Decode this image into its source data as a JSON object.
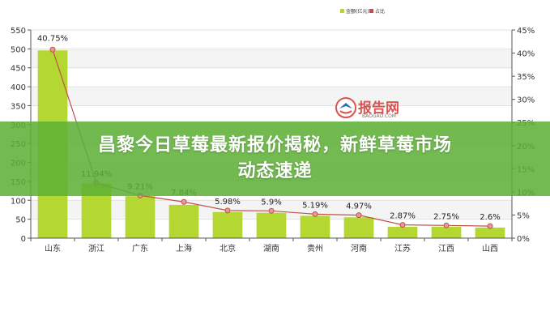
{
  "banner": {
    "line1": "昌黎今日草莓最新报价揭秘，新鲜草莓市场",
    "line2": "动态速递"
  },
  "watermark": {
    "brand": "报告网",
    "sub": "BAOGAO.COM"
  },
  "chart_data": {
    "type": "bar",
    "categories": [
      "山东",
      "浙江",
      "广东",
      "上海",
      "北京",
      "湖南",
      "贵州",
      "河南",
      "江苏",
      "江西",
      "山西"
    ],
    "series": [
      {
        "name": "金额(亿元)",
        "kind": "bar",
        "axis": "left",
        "color": "#b5d732",
        "values": [
          496,
          145,
          111,
          88,
          69,
          67,
          59,
          55,
          30,
          30,
          28
        ]
      },
      {
        "name": "占比",
        "kind": "line",
        "axis": "right",
        "color": "#c0504d",
        "values": [
          40.75,
          11.94,
          9.21,
          7.84,
          5.98,
          5.9,
          5.19,
          4.97,
          2.87,
          2.75,
          2.6
        ],
        "labels": [
          "40.75%",
          "11.94%",
          "9.21%",
          "7.84%",
          "5.98%",
          "5.9%",
          "5.19%",
          "4.97%",
          "2.87%",
          "2.75%",
          "2.6%"
        ]
      }
    ],
    "ylim": [
      0,
      550
    ],
    "yticks": [
      0,
      50,
      100,
      150,
      200,
      250,
      300,
      350,
      400,
      450,
      500,
      550
    ],
    "y2lim": [
      0,
      45
    ],
    "y2ticks": [
      "0%",
      "5%",
      "10%",
      "15%",
      "20%",
      "25%",
      "30%",
      "35%",
      "40%",
      "45%"
    ],
    "grid": true,
    "legend_position": "top-right"
  }
}
